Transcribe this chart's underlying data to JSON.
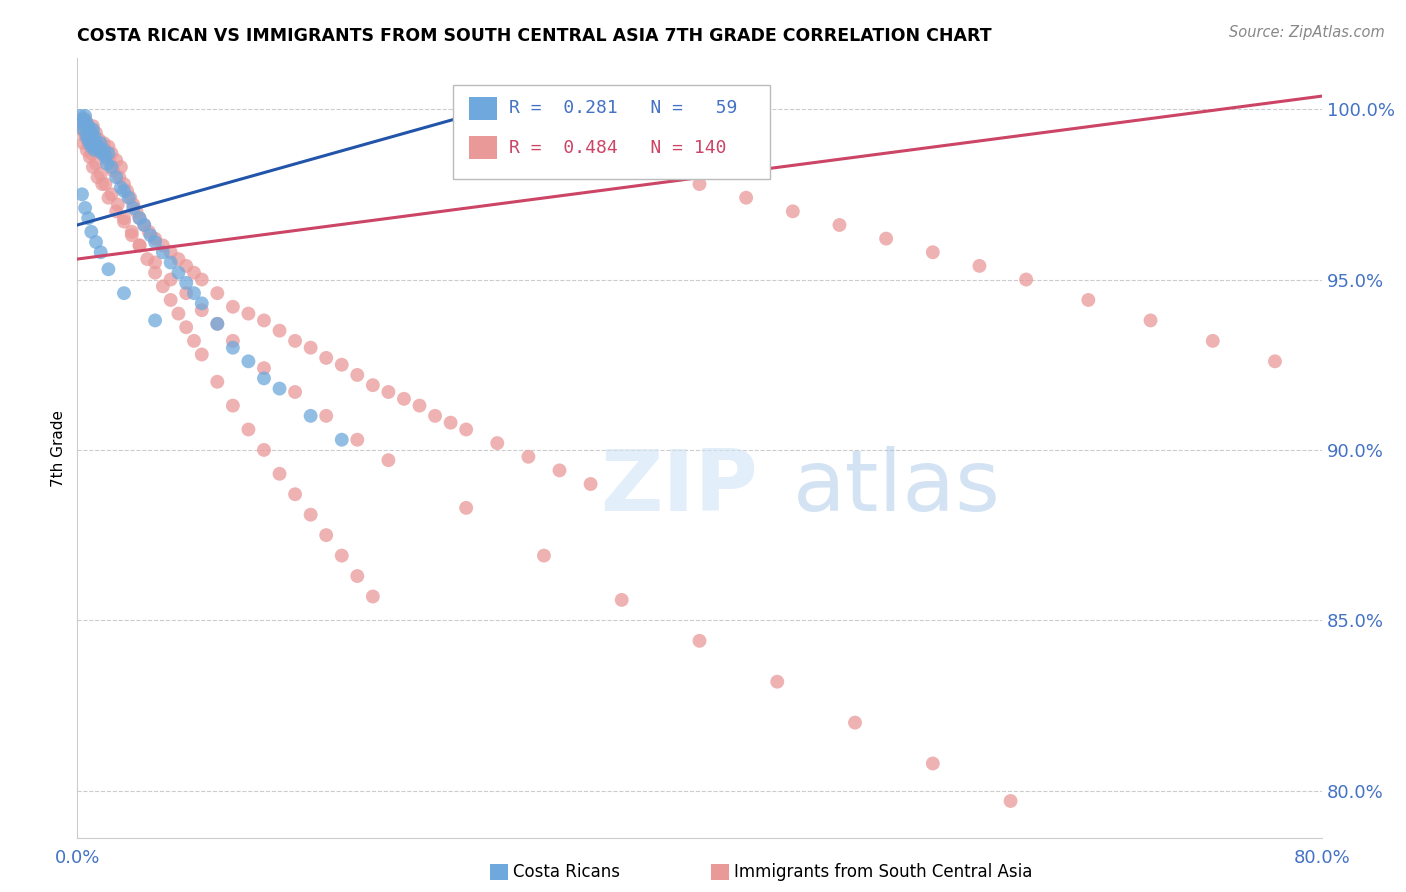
{
  "title": "COSTA RICAN VS IMMIGRANTS FROM SOUTH CENTRAL ASIA 7TH GRADE CORRELATION CHART",
  "source": "Source: ZipAtlas.com",
  "ylabel": "7th Grade",
  "ytick_labels": [
    "100.0%",
    "95.0%",
    "90.0%",
    "85.0%",
    "80.0%"
  ],
  "ytick_values": [
    1.0,
    0.95,
    0.9,
    0.85,
    0.8
  ],
  "xlim": [
    0.0,
    0.8
  ],
  "ylim": [
    0.786,
    1.015
  ],
  "blue_R": 0.281,
  "blue_N": 59,
  "pink_R": 0.484,
  "pink_N": 140,
  "blue_color": "#6fa8dc",
  "pink_color": "#ea9999",
  "blue_line_color": "#2255aa",
  "pink_line_color": "#cc4466",
  "legend_label_blue": "Costa Ricans",
  "legend_label_pink": "Immigrants from South Central Asia",
  "watermark_zip": "ZIP",
  "watermark_atlas": "atlas",
  "blue_scatter_x": [
    0.002,
    0.003,
    0.004,
    0.004,
    0.005,
    0.005,
    0.006,
    0.006,
    0.007,
    0.007,
    0.008,
    0.008,
    0.009,
    0.009,
    0.01,
    0.01,
    0.011,
    0.011,
    0.012,
    0.013,
    0.014,
    0.015,
    0.016,
    0.017,
    0.018,
    0.019,
    0.02,
    0.022,
    0.025,
    0.028,
    0.03,
    0.033,
    0.036,
    0.04,
    0.043,
    0.047,
    0.05,
    0.055,
    0.06,
    0.065,
    0.07,
    0.075,
    0.08,
    0.09,
    0.1,
    0.11,
    0.12,
    0.13,
    0.15,
    0.17,
    0.003,
    0.005,
    0.007,
    0.009,
    0.012,
    0.015,
    0.02,
    0.03,
    0.05
  ],
  "blue_scatter_y": [
    0.998,
    0.996,
    0.997,
    0.994,
    0.998,
    0.995,
    0.996,
    0.992,
    0.995,
    0.991,
    0.994,
    0.99,
    0.993,
    0.989,
    0.994,
    0.991,
    0.992,
    0.988,
    0.99,
    0.989,
    0.988,
    0.99,
    0.987,
    0.988,
    0.986,
    0.984,
    0.987,
    0.983,
    0.98,
    0.977,
    0.976,
    0.974,
    0.971,
    0.968,
    0.966,
    0.963,
    0.961,
    0.958,
    0.955,
    0.952,
    0.949,
    0.946,
    0.943,
    0.937,
    0.93,
    0.926,
    0.921,
    0.918,
    0.91,
    0.903,
    0.975,
    0.971,
    0.968,
    0.964,
    0.961,
    0.958,
    0.953,
    0.946,
    0.938
  ],
  "pink_scatter_x": [
    0.002,
    0.003,
    0.004,
    0.005,
    0.005,
    0.006,
    0.007,
    0.007,
    0.008,
    0.009,
    0.01,
    0.01,
    0.011,
    0.012,
    0.013,
    0.014,
    0.015,
    0.016,
    0.017,
    0.018,
    0.019,
    0.02,
    0.021,
    0.022,
    0.023,
    0.025,
    0.027,
    0.028,
    0.03,
    0.032,
    0.034,
    0.036,
    0.038,
    0.04,
    0.043,
    0.046,
    0.05,
    0.055,
    0.06,
    0.065,
    0.07,
    0.075,
    0.08,
    0.09,
    0.1,
    0.11,
    0.12,
    0.13,
    0.14,
    0.15,
    0.16,
    0.17,
    0.18,
    0.19,
    0.2,
    0.21,
    0.22,
    0.23,
    0.24,
    0.25,
    0.27,
    0.29,
    0.31,
    0.33,
    0.35,
    0.38,
    0.4,
    0.43,
    0.46,
    0.49,
    0.52,
    0.55,
    0.58,
    0.61,
    0.65,
    0.69,
    0.73,
    0.77,
    0.004,
    0.006,
    0.008,
    0.01,
    0.013,
    0.016,
    0.02,
    0.025,
    0.03,
    0.035,
    0.04,
    0.05,
    0.06,
    0.07,
    0.08,
    0.09,
    0.1,
    0.12,
    0.14,
    0.16,
    0.18,
    0.2,
    0.25,
    0.3,
    0.35,
    0.4,
    0.45,
    0.5,
    0.55,
    0.6,
    0.003,
    0.005,
    0.007,
    0.009,
    0.012,
    0.015,
    0.018,
    0.022,
    0.026,
    0.03,
    0.035,
    0.04,
    0.045,
    0.05,
    0.055,
    0.06,
    0.065,
    0.07,
    0.075,
    0.08,
    0.09,
    0.1,
    0.11,
    0.12,
    0.13,
    0.14,
    0.15,
    0.16,
    0.17,
    0.18,
    0.19
  ],
  "pink_scatter_y": [
    0.997,
    0.996,
    0.995,
    0.997,
    0.993,
    0.996,
    0.994,
    0.992,
    0.993,
    0.991,
    0.995,
    0.992,
    0.99,
    0.993,
    0.988,
    0.991,
    0.989,
    0.987,
    0.99,
    0.988,
    0.986,
    0.989,
    0.984,
    0.987,
    0.982,
    0.985,
    0.98,
    0.983,
    0.978,
    0.976,
    0.974,
    0.972,
    0.97,
    0.968,
    0.966,
    0.964,
    0.962,
    0.96,
    0.958,
    0.956,
    0.954,
    0.952,
    0.95,
    0.946,
    0.942,
    0.94,
    0.938,
    0.935,
    0.932,
    0.93,
    0.927,
    0.925,
    0.922,
    0.919,
    0.917,
    0.915,
    0.913,
    0.91,
    0.908,
    0.906,
    0.902,
    0.898,
    0.894,
    0.89,
    0.986,
    0.982,
    0.978,
    0.974,
    0.97,
    0.966,
    0.962,
    0.958,
    0.954,
    0.95,
    0.944,
    0.938,
    0.932,
    0.926,
    0.99,
    0.988,
    0.986,
    0.983,
    0.98,
    0.978,
    0.974,
    0.97,
    0.967,
    0.963,
    0.96,
    0.955,
    0.95,
    0.946,
    0.941,
    0.937,
    0.932,
    0.924,
    0.917,
    0.91,
    0.903,
    0.897,
    0.883,
    0.869,
    0.856,
    0.844,
    0.832,
    0.82,
    0.808,
    0.797,
    0.994,
    0.992,
    0.99,
    0.987,
    0.984,
    0.981,
    0.978,
    0.975,
    0.972,
    0.968,
    0.964,
    0.96,
    0.956,
    0.952,
    0.948,
    0.944,
    0.94,
    0.936,
    0.932,
    0.928,
    0.92,
    0.913,
    0.906,
    0.9,
    0.893,
    0.887,
    0.881,
    0.875,
    0.869,
    0.863,
    0.857
  ]
}
